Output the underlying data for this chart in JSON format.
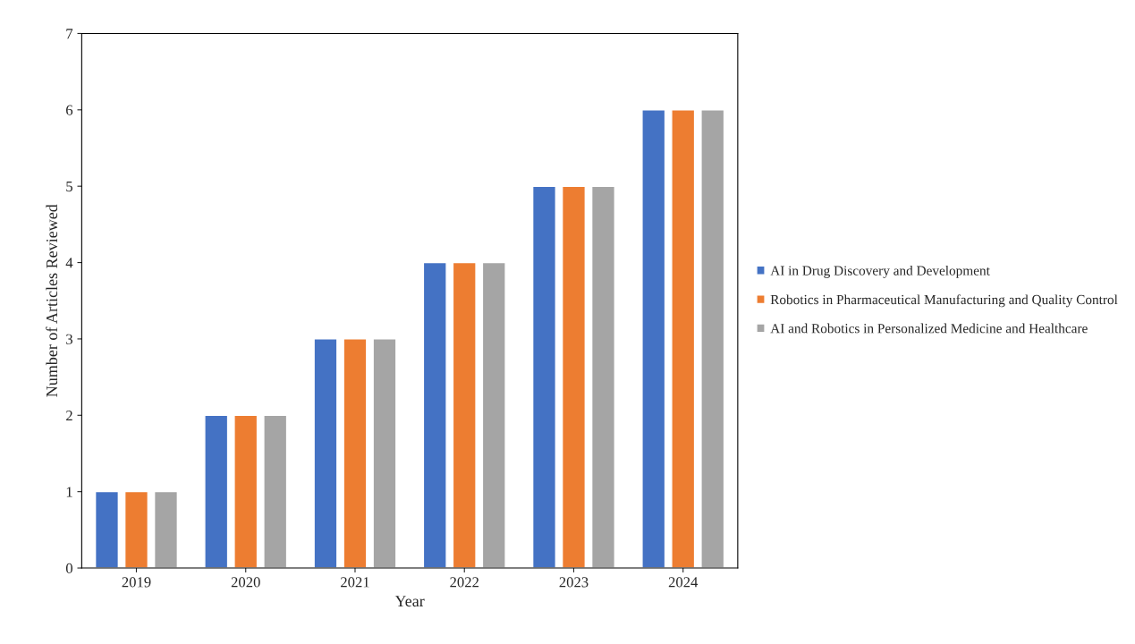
{
  "chart_data": {
    "type": "bar",
    "xlabel": "Year",
    "ylabel": "Number of Articles Reviewed",
    "categories": [
      "2019",
      "2020",
      "2021",
      "2022",
      "2023",
      "2024"
    ],
    "series": [
      {
        "name": "AI in Drug Discovery and Development",
        "color": "#4472c4",
        "values": [
          1,
          2,
          3,
          4,
          5,
          6
        ]
      },
      {
        "name": "Robotics in Pharmaceutical Manufacturing and Quality Control",
        "color": "#ed7d31",
        "values": [
          1,
          2,
          3,
          4,
          5,
          6
        ]
      },
      {
        "name": "AI and Robotics in Personalized Medicine and Healthcare",
        "color": "#a5a5a5",
        "values": [
          1,
          2,
          3,
          4,
          5,
          6
        ]
      }
    ],
    "ylim": [
      0,
      7
    ],
    "yticks": [
      0,
      1,
      2,
      3,
      4,
      5,
      6,
      7
    ],
    "grid": false,
    "legend": "right"
  }
}
